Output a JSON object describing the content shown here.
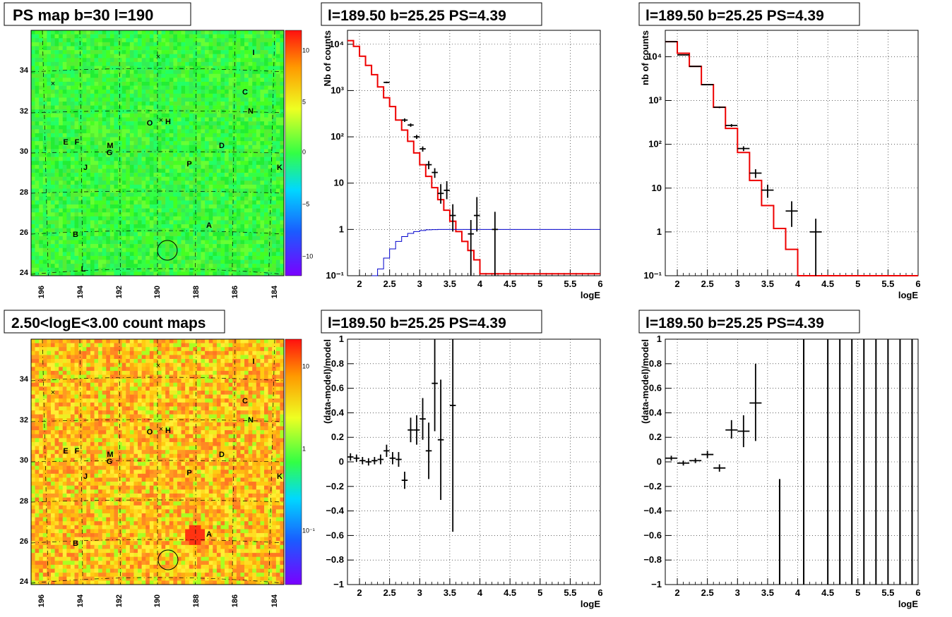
{
  "panels": {
    "ps_map": {
      "title": "PS map b=30 l=190",
      "x_ticks": [
        "196",
        "194",
        "192",
        "190",
        "188",
        "186",
        "184"
      ],
      "y_ticks": [
        "24",
        "26",
        "28",
        "30",
        "32",
        "34"
      ],
      "colorbar_ticks": [
        "10",
        "5",
        "0",
        "−5",
        "−10"
      ],
      "source_labels": [
        "I",
        "C",
        "N",
        "O",
        "H",
        "E",
        "F",
        "M",
        "G",
        "D",
        "J",
        "P",
        "K",
        "B",
        "A",
        "L"
      ]
    },
    "count_map": {
      "title": "2.50<logE<3.00 count maps",
      "x_ticks": [
        "196",
        "194",
        "192",
        "190",
        "188",
        "186",
        "184"
      ],
      "y_ticks": [
        "24",
        "26",
        "28",
        "30",
        "32",
        "34"
      ],
      "colorbar_ticks": [
        "10",
        "1",
        "10⁻¹"
      ],
      "source_labels": [
        "I",
        "C",
        "N",
        "O",
        "H",
        "E",
        "F",
        "M",
        "G",
        "D",
        "J",
        "P",
        "K",
        "B",
        "A"
      ]
    }
  },
  "chart_data": [
    {
      "type": "line",
      "panel": "spectrum-fine",
      "title": "l=189.50 b=25.25 PS=4.39",
      "xlabel": "logE",
      "ylabel": "Nb of counts",
      "xlim": [
        1.8,
        6
      ],
      "ylim": [
        0.1,
        20000
      ],
      "y_scale": "log",
      "grid": true,
      "x_ticks": [
        "2",
        "2.5",
        "3",
        "3.5",
        "4",
        "4.5",
        "5",
        "5.5",
        "6"
      ],
      "y_ticks": [
        "10⁻¹",
        "1",
        "10",
        "10²",
        "10³",
        "10⁴"
      ],
      "series": [
        {
          "color": "#ee0000",
          "style": "step",
          "x": [
            1.8,
            1.9,
            2.0,
            2.1,
            2.2,
            2.3,
            2.4,
            2.5,
            2.6,
            2.7,
            2.8,
            2.9,
            3.0,
            3.1,
            3.2,
            3.3,
            3.4,
            3.5,
            3.6,
            3.7,
            3.8,
            3.9,
            4.0,
            4.1
          ],
          "values": [
            12000,
            9000,
            5500,
            3500,
            2200,
            1200,
            700,
            450,
            230,
            140,
            80,
            45,
            25,
            14,
            8,
            4.4,
            2.6,
            1.5,
            0.9,
            0.55,
            0.35,
            0.22,
            0.11,
            0.11
          ]
        },
        {
          "color": "#0000cc",
          "style": "step",
          "x": [
            2.2,
            2.3,
            2.4,
            2.5,
            2.6,
            2.7,
            2.8,
            2.9,
            3.0,
            3.1,
            3.2,
            3.3,
            3.4,
            3.5,
            3.6,
            4.0,
            4.5,
            5.0,
            5.5,
            6.0
          ],
          "values": [
            0.1,
            0.14,
            0.24,
            0.38,
            0.55,
            0.7,
            0.82,
            0.9,
            0.95,
            0.98,
            0.99,
            1.0,
            1.0,
            1.0,
            1.0,
            1.0,
            1.0,
            1.0,
            1.0,
            1.0
          ]
        },
        {
          "color": "#000000",
          "style": "points",
          "x": [
            2.45,
            2.75,
            2.85,
            2.95,
            3.05,
            3.15,
            3.25,
            3.35,
            3.45,
            3.55,
            3.85,
            3.95,
            4.25
          ],
          "values": [
            1500,
            230,
            180,
            100,
            55,
            25,
            17,
            6,
            7,
            2,
            0.8,
            2,
            1
          ],
          "err_low": [
            1440,
            210,
            165,
            90,
            48,
            20,
            13,
            3.6,
            4.5,
            0.9,
            0.1,
            0.9,
            0.1
          ],
          "err_high": [
            1560,
            250,
            195,
            110,
            62,
            30,
            21,
            9.5,
            11,
            3.5,
            1.6,
            5,
            2.4
          ],
          "x_err": 0.05
        }
      ]
    },
    {
      "type": "line",
      "panel": "spectrum-coarse",
      "title": "l=189.50 b=25.25 PS=4.39",
      "xlabel": "logE",
      "ylabel": "nb of counts",
      "xlim": [
        1.8,
        6
      ],
      "ylim": [
        0.1,
        40000
      ],
      "y_scale": "log",
      "grid": true,
      "x_ticks": [
        "2",
        "2.5",
        "3",
        "3.5",
        "4",
        "4.5",
        "5",
        "5.5",
        "6"
      ],
      "y_ticks": [
        "10⁻¹",
        "1",
        "10",
        "10²",
        "10³",
        "10⁴"
      ],
      "series": [
        {
          "color": "#ee0000",
          "style": "step",
          "x": [
            1.8,
            2.0,
            2.2,
            2.4,
            2.6,
            2.8,
            3.0,
            3.2,
            3.4,
            3.6,
            3.8,
            4.0,
            4.2
          ],
          "values": [
            22000,
            12000,
            6000,
            2300,
            700,
            230,
            65,
            15,
            4,
            1.2,
            0.4,
            0.1,
            0.1
          ]
        },
        {
          "color": "#000000",
          "style": "points",
          "x": [
            1.9,
            2.1,
            2.3,
            2.5,
            2.7,
            2.9,
            3.1,
            3.3,
            3.5,
            3.9,
            4.3
          ],
          "values": [
            22000,
            11000,
            6000,
            2300,
            700,
            270,
            80,
            22,
            9,
            3,
            1
          ],
          "err_low": [
            21800,
            10900,
            5900,
            2250,
            670,
            250,
            70,
            17,
            6,
            1.3,
            0.1
          ],
          "err_high": [
            22200,
            11100,
            6100,
            2350,
            730,
            290,
            90,
            27,
            12,
            5,
            2
          ],
          "x_err": 0.1
        }
      ]
    },
    {
      "type": "scatter",
      "panel": "residual-fine",
      "title": "l=189.50 b=25.25 PS=4.39",
      "xlabel": "logE",
      "ylabel": "(data-model)/model",
      "xlim": [
        1.8,
        6
      ],
      "ylim": [
        -1,
        1
      ],
      "grid": true,
      "x_ticks": [
        "2",
        "2.5",
        "3",
        "3.5",
        "4",
        "4.5",
        "5",
        "5.5",
        "6"
      ],
      "y_ticks": [
        "−1",
        "−0.8",
        "−0.6",
        "−0.4",
        "−0.2",
        "0",
        "0.2",
        "0.4",
        "0.6",
        "0.8",
        "1"
      ],
      "series": [
        {
          "color": "#000000",
          "style": "points",
          "x": [
            1.85,
            1.95,
            2.05,
            2.15,
            2.25,
            2.35,
            2.45,
            2.55,
            2.65,
            2.75,
            2.85,
            2.95,
            3.05,
            3.15,
            3.25,
            3.35,
            3.55
          ],
          "values": [
            0.04,
            0.03,
            0.01,
            0.0,
            0.01,
            0.02,
            0.09,
            0.03,
            0.02,
            -0.15,
            0.26,
            0.26,
            0.35,
            0.09,
            0.64,
            0.18,
            0.46
          ],
          "err_low": [
            0.01,
            0.0,
            -0.02,
            -0.03,
            -0.02,
            -0.02,
            0.04,
            -0.02,
            -0.04,
            -0.22,
            0.16,
            0.14,
            0.18,
            -0.14,
            0.25,
            -0.31,
            -0.57
          ],
          "err_high": [
            0.07,
            0.06,
            0.04,
            0.03,
            0.04,
            0.06,
            0.14,
            0.08,
            0.08,
            -0.08,
            0.36,
            0.38,
            0.52,
            0.32,
            1.0,
            0.67,
            1.0
          ],
          "x_err": 0.05
        }
      ]
    },
    {
      "type": "scatter",
      "panel": "residual-coarse",
      "title": "l=189.50 b=25.25 PS=4.39",
      "xlabel": "logE",
      "ylabel": "(data-model)/model",
      "xlim": [
        1.8,
        6
      ],
      "ylim": [
        -1,
        1
      ],
      "grid": true,
      "x_ticks": [
        "2",
        "2.5",
        "3",
        "3.5",
        "4",
        "4.5",
        "5",
        "5.5",
        "6"
      ],
      "y_ticks": [
        "−1",
        "−0.8",
        "−0.6",
        "−0.4",
        "−0.2",
        "0",
        "0.2",
        "0.4",
        "0.6",
        "0.8",
        "1"
      ],
      "series": [
        {
          "color": "#000000",
          "style": "points",
          "x": [
            1.9,
            2.1,
            2.3,
            2.5,
            2.7,
            2.9,
            3.1,
            3.3
          ],
          "values": [
            0.03,
            -0.01,
            0.01,
            0.06,
            -0.05,
            0.26,
            0.25,
            0.48
          ],
          "err_low": [
            0.01,
            -0.03,
            -0.01,
            0.03,
            -0.08,
            0.19,
            0.12,
            0.17
          ],
          "err_high": [
            0.05,
            0.01,
            0.03,
            0.09,
            -0.02,
            0.34,
            0.38,
            0.8
          ],
          "x_err": 0.1
        },
        {
          "color": "#000000",
          "style": "bars",
          "x": [
            3.7,
            4.1,
            4.5,
            4.7,
            4.9,
            5.1,
            5.3,
            5.5,
            5.7,
            5.9
          ],
          "err_low": [
            -1,
            -1,
            -1,
            -1,
            -1,
            -1,
            -1,
            -1,
            -1,
            -1
          ],
          "err_high": [
            -0.14,
            1,
            1,
            1,
            1,
            1,
            1,
            1,
            1,
            1
          ]
        }
      ]
    }
  ]
}
